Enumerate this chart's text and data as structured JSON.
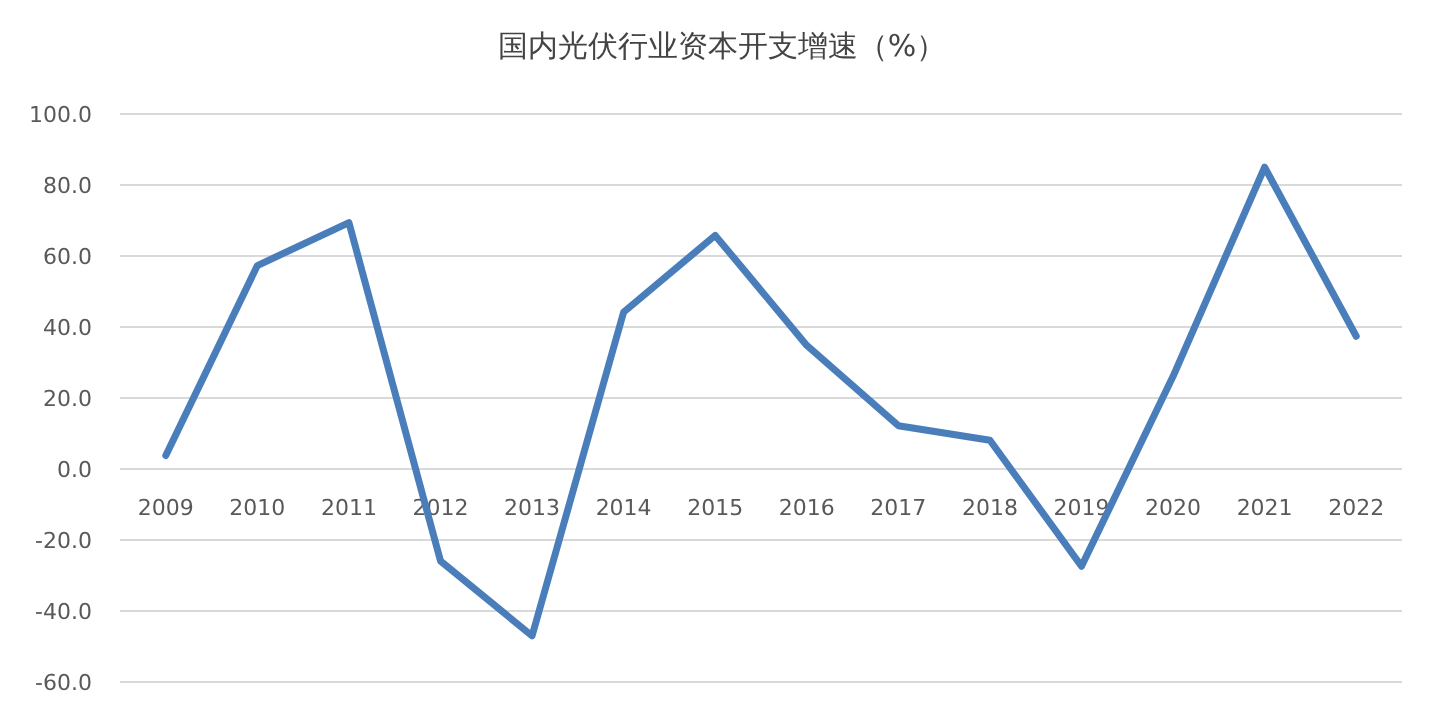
{
  "chart_data": {
    "type": "line",
    "title": "国内光伏行业资本开支增速（%）",
    "categories": [
      "2009",
      "2010",
      "2011",
      "2012",
      "2013",
      "2014",
      "2015",
      "2016",
      "2017",
      "2018",
      "2019",
      "2020",
      "2021",
      "2022"
    ],
    "series": [
      {
        "color": "#4a7ebb",
        "values": [
          3.8,
          57.3,
          69.4,
          -25.9,
          -47.0,
          44.2,
          65.8,
          34.8,
          12.2,
          8.1,
          -27.4,
          26.1,
          85.0,
          37.4
        ]
      }
    ],
    "ylim": [
      -60,
      100
    ],
    "yticks": [
      {
        "value": -60,
        "label": "-60.0"
      },
      {
        "value": -40,
        "label": "-40.0"
      },
      {
        "value": -20,
        "label": "-20.0"
      },
      {
        "value": 0,
        "label": "0.0"
      },
      {
        "value": 20,
        "label": "20.0"
      },
      {
        "value": 40,
        "label": "40.0"
      },
      {
        "value": 60,
        "label": "60.0"
      },
      {
        "value": 80,
        "label": "80.0"
      },
      {
        "value": 100,
        "label": "100.0"
      }
    ],
    "grid": "y",
    "marker": "none",
    "line_style": "solid"
  }
}
